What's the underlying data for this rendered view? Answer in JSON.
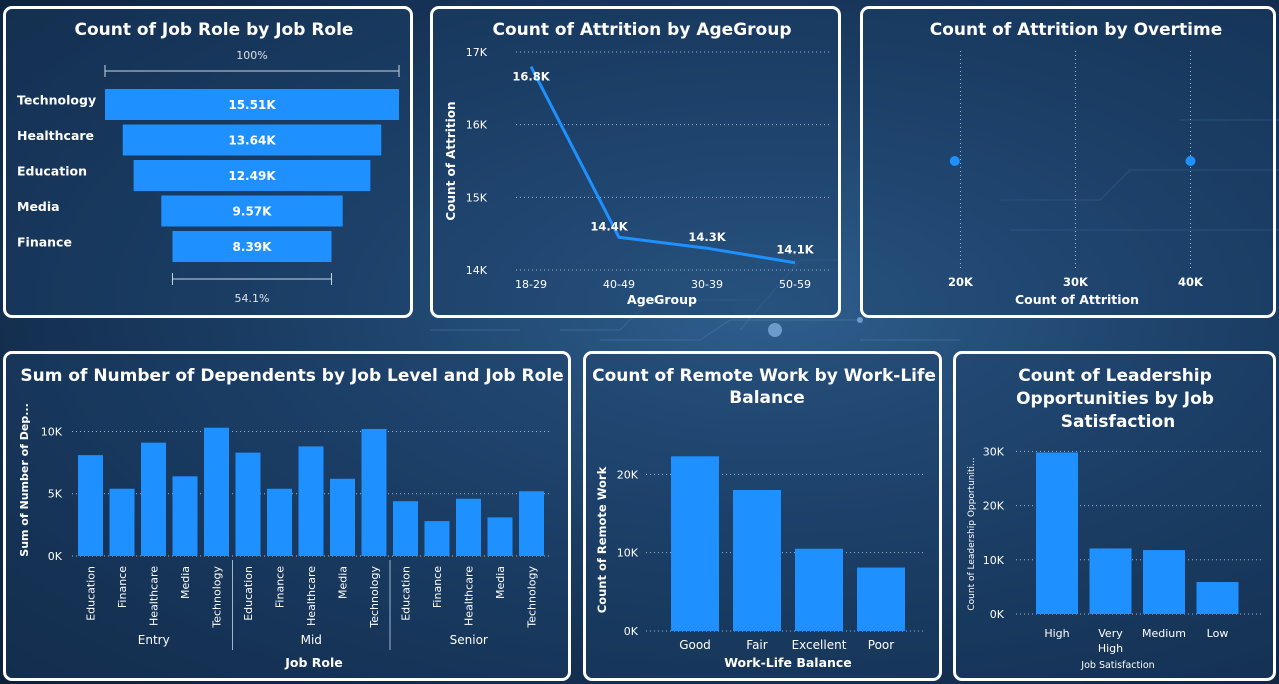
{
  "chart_data": [
    {
      "id": "funnel",
      "type": "bar",
      "subtype": "funnel",
      "title": "Count of Job Role by Job Role",
      "categories": [
        "Technology",
        "Healthcare",
        "Education",
        "Media",
        "Finance"
      ],
      "values": [
        15.51,
        13.64,
        12.49,
        9.57,
        8.39
      ],
      "value_labels": [
        "15.51K",
        "13.64K",
        "12.49K",
        "9.57K",
        "8.39K"
      ],
      "top_pct": "100%",
      "bottom_pct": "54.1%",
      "color": "#1e90ff"
    },
    {
      "id": "attrition_age",
      "type": "line",
      "title": "Count of Attrition by AgeGroup",
      "categories": [
        "18-29",
        "40-49",
        "30-39",
        "50-59"
      ],
      "values": [
        16.8,
        14.45,
        14.3,
        14.1
      ],
      "value_labels": [
        "16.8K",
        "14.4K",
        "14.3K",
        "14.1K"
      ],
      "xlabel": "AgeGroup",
      "ylabel": "Count of Attrition",
      "ylim": [
        14,
        17
      ],
      "yticks": [
        {
          "v": 17,
          "label": "17K"
        },
        {
          "v": 16,
          "label": "16K"
        },
        {
          "v": 15,
          "label": "15K"
        },
        {
          "v": 14,
          "label": "14K"
        }
      ],
      "color": "#1e90ff"
    },
    {
      "id": "attrition_overtime",
      "type": "scatter",
      "title": "Count of Attrition by Overtime",
      "x": [
        19.5,
        40
      ],
      "xlabel": "Count of Attrition",
      "xlim": [
        15,
        45
      ],
      "xticks": [
        {
          "v": 20,
          "label": "20K"
        },
        {
          "v": 30,
          "label": "30K"
        },
        {
          "v": 40,
          "label": "40K"
        }
      ],
      "color": "#1e90ff"
    },
    {
      "id": "dependents",
      "type": "bar",
      "title": "Sum of Number of Dependents by Job Level and Job Role",
      "groups": [
        "Entry",
        "Mid",
        "Senior"
      ],
      "roles": [
        "Education",
        "Finance",
        "Healthcare",
        "Media",
        "Technology"
      ],
      "values": [
        [
          8.1,
          5.4,
          9.1,
          6.4,
          10.3
        ],
        [
          8.3,
          5.4,
          8.8,
          6.2,
          10.2
        ],
        [
          4.4,
          2.8,
          4.6,
          3.1,
          5.2
        ]
      ],
      "xlabel": "Job Role",
      "ylabel": "Sum of Number of Dep...",
      "ylim": [
        0,
        11
      ],
      "yticks": [
        {
          "v": 10,
          "label": "10K"
        },
        {
          "v": 5,
          "label": "5K"
        },
        {
          "v": 0,
          "label": "0K"
        }
      ],
      "color": "#1e90ff"
    },
    {
      "id": "remote",
      "type": "bar",
      "title": "Count of Remote Work by Work-Life Balance",
      "categories": [
        "Good",
        "Fair",
        "Excellent",
        "Poor"
      ],
      "values": [
        22.3,
        18,
        10.5,
        8.1
      ],
      "xlabel": "Work-Life Balance",
      "ylabel": "Count of Remote Work",
      "ylim": [
        0,
        24
      ],
      "yticks": [
        {
          "v": 20,
          "label": "20K"
        },
        {
          "v": 10,
          "label": "10K"
        },
        {
          "v": 0,
          "label": "0K"
        }
      ],
      "color": "#1e90ff"
    },
    {
      "id": "leadership",
      "type": "bar",
      "title": "Count of Leadership Opportunities by Job Satisfaction",
      "categories": [
        "High",
        "Very High",
        "Medium",
        "Low"
      ],
      "values": [
        29.8,
        12.1,
        11.8,
        5.9
      ],
      "xlabel": "Job Satisfaction",
      "ylabel": "Count of Leadership Opportuniti...",
      "ylim": [
        0,
        31
      ],
      "yticks": [
        {
          "v": 30,
          "label": "30K"
        },
        {
          "v": 20,
          "label": "20K"
        },
        {
          "v": 10,
          "label": "10K"
        },
        {
          "v": 0,
          "label": "0K"
        }
      ],
      "color": "#1e90ff"
    }
  ]
}
